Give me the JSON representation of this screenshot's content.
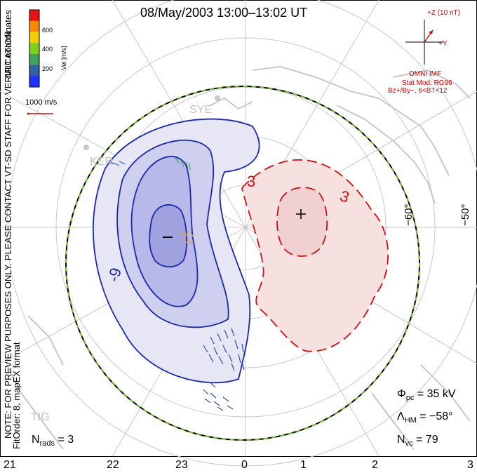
{
  "title": "08/May/2003 13:00–13:02 UT",
  "coordinates_label": "MLT coordinates",
  "note_text": "NOTE: FOR PREVIEW PURPOSES ONLY. PLEASE CONTACT VT-SD STAFF FOR VERIFICATION.",
  "fit_text": "FitOrder: 8, mapEX format",
  "colorbar": {
    "title": "Vel [m/s]",
    "ticks": [
      "600",
      "400",
      "200"
    ],
    "colors": [
      "#e81010",
      "#ff8800",
      "#f0d000",
      "#80d020",
      "#40a060",
      "#3060a0",
      "#2030ff"
    ]
  },
  "scale_vector_label": "1000 m/s",
  "imf": {
    "bz_label": "+Z (10 nT)",
    "by_label": "+Y",
    "source": "OMNI IMF",
    "model": "Stat Mod: RG96",
    "condition": "Bz+/By−, 6<BT<12"
  },
  "lat_labels": [
    "−60°",
    "−50°"
  ],
  "mlt_ticks": [
    "21",
    "22",
    "23",
    "0",
    "1",
    "2",
    "3"
  ],
  "contour_labels": {
    "neg": "-9",
    "pos1": "3",
    "pos2": "3"
  },
  "stations": [
    "SYE",
    "KER",
    "TIG"
  ],
  "stats": {
    "rads_label": "N",
    "rads_sub": "rads",
    "rads_value": "= 3",
    "phi_label": "Φ",
    "phi_sub": "pc",
    "phi_value": "= 35 kV",
    "lambda_label": "Λ",
    "lambda_sub": "HM",
    "lambda_value": "= −58°",
    "nvc_label": "N",
    "nvc_sub": "vc",
    "nvc_value": "= 79"
  },
  "colors": {
    "negative_contour": "#1a28b0",
    "positive_contour": "#d01010",
    "hm_boundary": "#70c030",
    "coastline": "#c8c8c8"
  }
}
